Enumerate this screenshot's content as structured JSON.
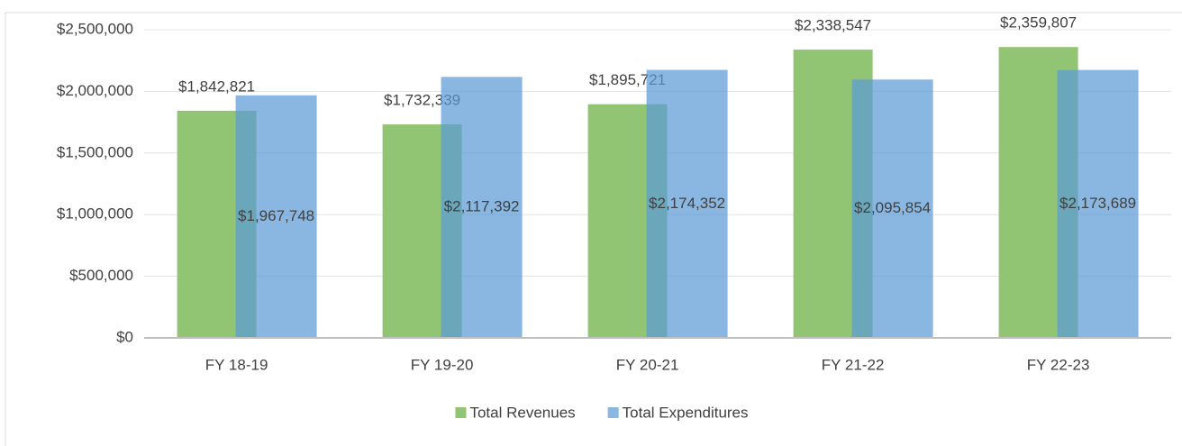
{
  "chart_data": {
    "type": "bar",
    "categories": [
      "FY 18-19",
      "FY 19-20",
      "FY 20-21",
      "FY 21-22",
      "FY 22-23"
    ],
    "series": [
      {
        "name": "Total Revenues",
        "color": "#8cc26b",
        "values": [
          1842821,
          1732339,
          1895721,
          2338547,
          2359807
        ],
        "value_labels": [
          "$1,842,821",
          "$1,732,339",
          "$1,895,721",
          "$2,338,547",
          "$2,359,807"
        ]
      },
      {
        "name": "Total Expenditures",
        "color": "#5b9bd5",
        "values": [
          1967748,
          2117392,
          2174352,
          2095854,
          2173689
        ],
        "value_labels": [
          "$1,967,748",
          "$2,117,392",
          "$2,174,352",
          "$2,095,854",
          "$2,173,689"
        ]
      }
    ],
    "ylim": [
      0,
      2500000
    ],
    "yticks": [
      {
        "value": 0,
        "label": "$0"
      },
      {
        "value": 500000,
        "label": "$500,000"
      },
      {
        "value": 1000000,
        "label": "$1,000,000"
      },
      {
        "value": 1500000,
        "label": "$1,500,000"
      },
      {
        "value": 2000000,
        "label": "$2,000,000"
      },
      {
        "value": 2500000,
        "label": "$2,500,000"
      }
    ],
    "grid": true,
    "legend": "bottom"
  }
}
